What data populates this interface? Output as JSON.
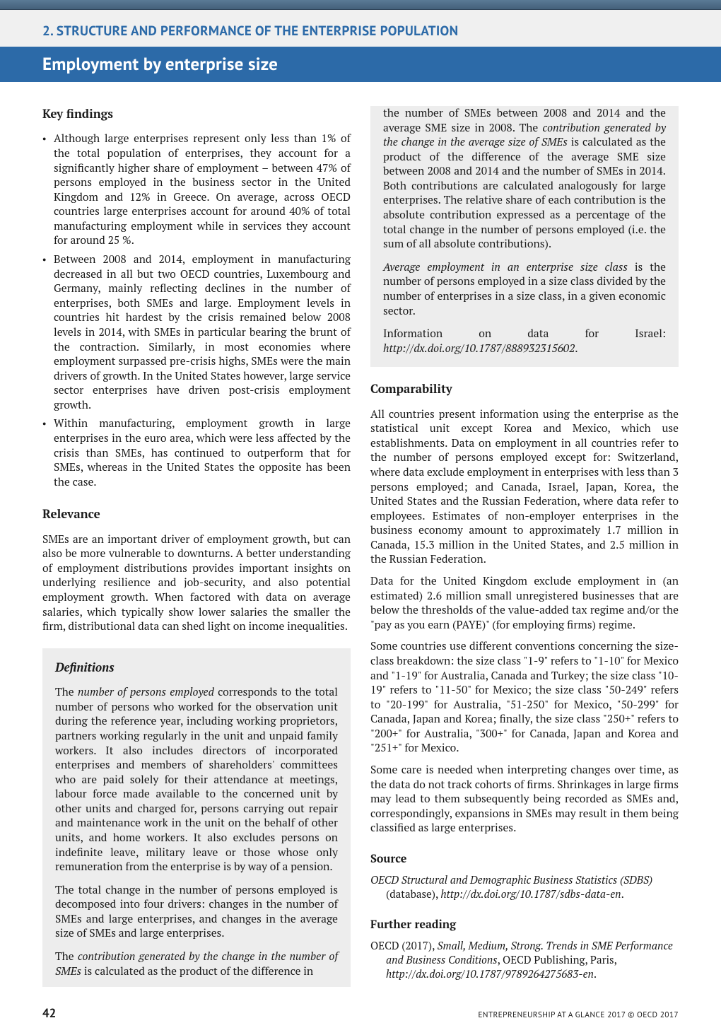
{
  "colors": {
    "accent": "#2c6aa8",
    "topbar_from": "#5a7a95",
    "topbar_to": "#44607a",
    "box_bg": "#ededed",
    "header_bg": "#f0f0f0",
    "text": "#1a1a1a"
  },
  "page": {
    "number": "42",
    "footer_right": "ENTREPRENEURSHIP AT A GLANCE 2017 © OECD 2017"
  },
  "header": {
    "chapter": "2. STRUCTURE AND PERFORMANCE OF THE ENTERPRISE POPULATION",
    "title": "Employment by enterprise size"
  },
  "sections": {
    "key_findings": {
      "heading": "Key findings",
      "items": [
        "Although large enterprises represent only less than 1% of the total population of enterprises, they account for a significantly higher share of employment – between 47% of persons employed in the business sector in the United Kingdom and 12% in Greece. On average, across OECD countries large enterprises account for around 40% of total manufacturing employment while in services they account for around 25 %.",
        "Between 2008 and 2014, employment in manufacturing decreased in all but two OECD countries, Luxembourg and Germany, mainly reflecting declines in the number of enterprises, both SMEs and large. Employment levels in countries hit hardest by the crisis remained below 2008 levels in 2014, with SMEs in particular bearing the brunt of the contraction. Similarly, in most economies where employment surpassed pre-crisis highs, SMEs were the main drivers of growth. In the United States however, large service sector enterprises have driven post-crisis employment growth.",
        "Within manufacturing, employment growth in large enterprises in the euro area, which were less affected by the crisis than SMEs, has continued to outperform that for SMEs, whereas in the United States the opposite has been the case."
      ]
    },
    "relevance": {
      "heading": "Relevance",
      "body": "SMEs are an important driver of employment growth, but can also be more vulnerable to downturns. A better understanding of employment distributions provides important insights on underlying resilience and job-security, and also potential employment growth. When factored with data on average salaries, which typically show lower salaries the smaller the firm, distributional data can shed light on income inequalities."
    },
    "definitions": {
      "heading": "Definitions",
      "p1_pre": "The ",
      "p1_em": "number of persons employed",
      "p1_post": " corresponds to the total number of persons who worked for the observation unit during the reference year, including working proprietors, partners working regularly in the unit and unpaid family workers. It also includes directors of incorporated enterprises and members of shareholders' committees who are paid solely for their attendance at meetings, labour force made available to the concerned unit by other units and charged for, persons carrying out repair and maintenance work in the unit on the behalf of other units, and home workers. It also excludes persons on indefinite leave, military leave or those whose only remuneration from the enterprise is by way of a pension.",
      "p2": "The total change in the number of persons employed is decomposed into four drivers: changes in the number of SMEs and large enterprises, and changes in the average size of SMEs and large enterprises.",
      "p3_pre": "The ",
      "p3_em": "contribution generated by the change in the number of SMEs",
      "p3_post": " is calculated as the product of the difference in",
      "p4_pre1": "the number of SMEs between 2008 and 2014 and the average SME size in 2008. The ",
      "p4_em": "contribution generated by the change in the average size of SMEs",
      "p4_post": " is calculated as the product of the difference of the average SME size between 2008 and 2014 and the number of SMEs in 2014. Both contributions are calculated analogously for large enterprises. The relative share of each contribution is the absolute contribution expressed as a percentage of the total change in the number of persons employed (i.e. the sum of all absolute contributions).",
      "p5_em": "Average employment in an enterprise size class",
      "p5_post": " is the number of persons employed in a size class divided by the number of enterprises in a size class, in a given economic sector.",
      "p6_pre": "Information on data for Israel: ",
      "p6_link": "http://dx.doi.org/10.1787/888932315602",
      "p6_post": "."
    },
    "comparability": {
      "heading": "Comparability",
      "p1": "All countries present information using the enterprise as the statistical unit except Korea and Mexico, which use establishments. Data on employment in all countries refer to the number of persons employed except for: Switzerland, where data exclude employment in enterprises with less than 3 persons employed; and Canada, Israel, Japan, Korea, the United States and the Russian Federation, where data refer to employees. Estimates of non-employer enterprises in the business economy amount to approximately 1.7 million in Canada, 15.3 million in the United States, and 2.5 million in the Russian Federation.",
      "p2": "Data for the United Kingdom exclude employment in (an estimated) 2.6 million small unregistered businesses that are below the thresholds of the value-added tax regime and/or the \"pay as you earn (PAYE)\" (for employing firms) regime.",
      "p3": "Some countries use different conventions concerning the size-class breakdown: the size class \"1-9\" refers to \"1-10\" for Mexico and \"1-19\" for Australia, Canada and Turkey; the size class \"10-19\" refers to \"11-50\" for Mexico; the size class \"50-249\" refers to \"20-199\" for Australia, \"51-250\" for Mexico, \"50-299\" for Canada, Japan and Korea; finally, the size class \"250+\" refers to \"200+\" for Australia, \"300+\" for Canada, Japan and Korea and \"251+\" for Mexico.",
      "p4": "Some care is needed when interpreting changes over time, as the data do not track cohorts of firms. Shrinkages in large firms may lead to them subsequently being recorded as SMEs and, correspondingly, expansions in SMEs may result in them being classified as large enterprises."
    },
    "source": {
      "heading": "Source",
      "item_em": "OECD Structural and Demographic Business Statistics (SDBS)",
      "item_rest": " (database), ",
      "item_link": "http://dx.doi.org/10.1787/sdbs-data-en",
      "item_close": "."
    },
    "further_reading": {
      "heading": "Further reading",
      "item_pre": "OECD (2017), ",
      "item_em": "Small, Medium, Strong. Trends in SME Performance and Business Conditions",
      "item_mid": ", OECD Publishing, Paris, ",
      "item_link": "http://dx.doi.org/10.1787/9789264275683-en",
      "item_close": "."
    }
  }
}
